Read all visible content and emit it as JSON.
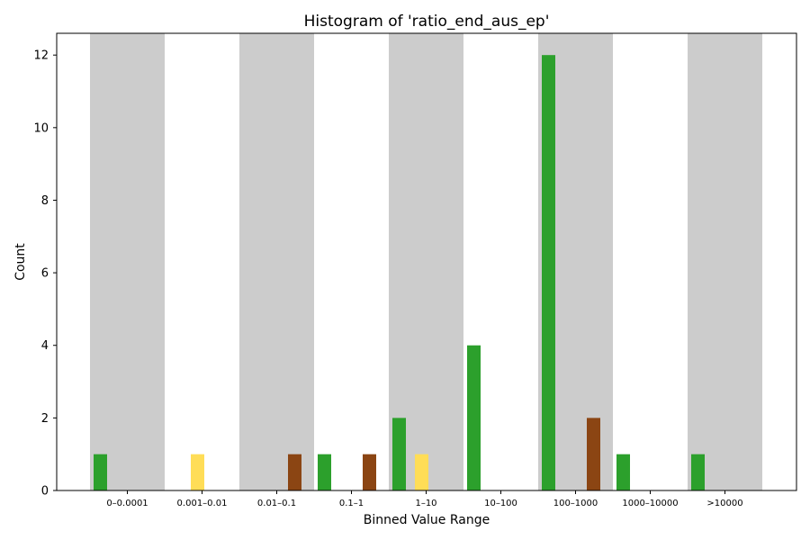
{
  "chart_data": {
    "type": "bar",
    "title": "Histogram of 'ratio_end_aus_ep'",
    "xlabel": "Binned Value Range",
    "ylabel": "Count",
    "categories": [
      "0–0.0001",
      "0.001–0.01",
      "0.01–0.1",
      "0.1–1",
      "1–10",
      "10–100",
      "100–1000",
      "1000–10000",
      ">10000"
    ],
    "ylim": [
      0,
      12.6
    ],
    "yticks": [
      0,
      2,
      4,
      6,
      8,
      10,
      12
    ],
    "grid": false,
    "legend": "none",
    "shaded_bins": [
      0,
      2,
      4,
      6,
      8
    ],
    "series": [
      {
        "color": "#2ca02c",
        "values": [
          1,
          0,
          0,
          1,
          2,
          4,
          12,
          1,
          1
        ]
      },
      {
        "color": "#ffdd57",
        "values": [
          0,
          1,
          0,
          0,
          1,
          0,
          0,
          0,
          0
        ]
      },
      {
        "color": "#8b4513",
        "values": [
          0,
          0,
          1,
          1,
          0,
          0,
          2,
          0,
          0
        ]
      }
    ],
    "colors": {
      "shade": "#cccccc"
    }
  }
}
